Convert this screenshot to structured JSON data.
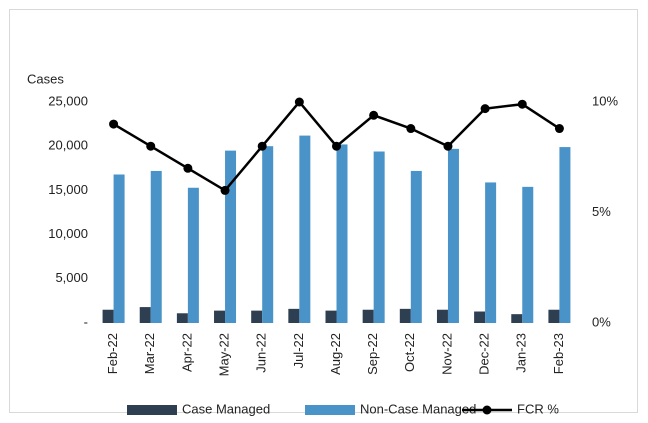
{
  "chart_data": {
    "type": "bar_line",
    "y_label": "Cases",
    "categories": [
      "Feb-22",
      "Mar-22",
      "Apr-22",
      "May-22",
      "Jun-22",
      "Jul-22",
      "Aug-22",
      "Sep-22",
      "Oct-22",
      "Nov-22",
      "Dec-22",
      "Jan-23",
      "Feb-23"
    ],
    "series": [
      {
        "name": "Case Managed",
        "color": "#2e3f52",
        "type": "bar",
        "values": [
          1500,
          1800,
          1100,
          1400,
          1400,
          1600,
          1400,
          1500,
          1600,
          1500,
          1300,
          1000,
          1500
        ]
      },
      {
        "name": "Non-Case Managed",
        "color": "#4a93c8",
        "type": "bar",
        "values": [
          16800,
          17200,
          15300,
          19500,
          20000,
          21200,
          20200,
          19400,
          17200,
          19700,
          15900,
          15400,
          19900
        ]
      },
      {
        "name": "FCR %",
        "color": "#000000",
        "type": "line",
        "axis": "y2",
        "values": [
          9.0,
          8.0,
          7.0,
          6.0,
          8.0,
          10.0,
          8.0,
          9.4,
          8.8,
          8.0,
          9.7,
          9.9,
          8.8
        ]
      }
    ],
    "ylim": [
      0,
      25000
    ],
    "yticks": [
      {
        "value": 0,
        "label": "-"
      },
      {
        "value": 5000,
        "label": "5,000"
      },
      {
        "value": 10000,
        "label": "10,000"
      },
      {
        "value": 15000,
        "label": "15,000"
      },
      {
        "value": 20000,
        "label": "20,000"
      },
      {
        "value": 25000,
        "label": "25,000"
      }
    ],
    "y2lim": [
      0,
      10
    ],
    "y2ticks": [
      {
        "value": 0,
        "label": "0%"
      },
      {
        "value": 5,
        "label": "5%"
      },
      {
        "value": 10,
        "label": "10%"
      }
    ],
    "legend": "bottom"
  }
}
